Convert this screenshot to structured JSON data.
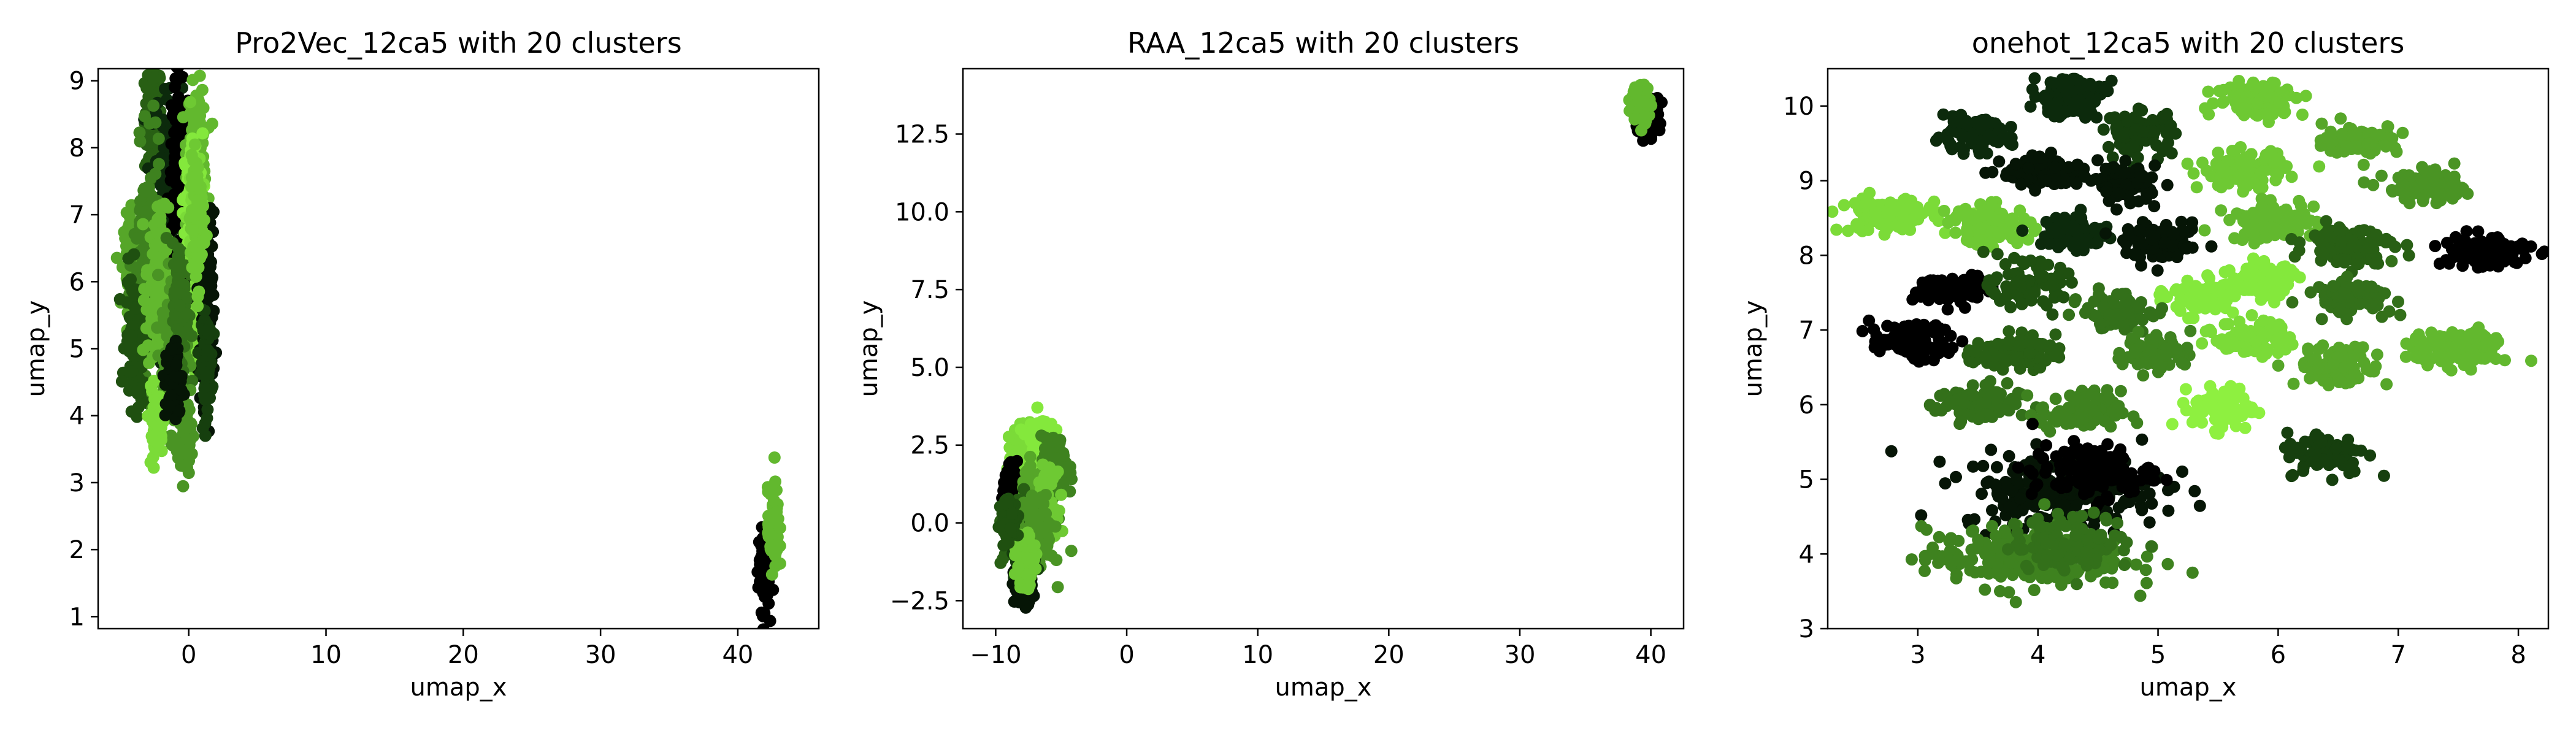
{
  "figure": {
    "colors": [
      "#000000",
      "#061506",
      "#0c2a0c",
      "#163f0e",
      "#1f5010",
      "#285f14",
      "#33701a",
      "#3e821f",
      "#4a9424",
      "#56a629",
      "#62b82e",
      "#6ec933",
      "#7bdb38",
      "#84e83c",
      "#8ef040"
    ]
  },
  "chart_data": [
    {
      "type": "scatter",
      "title": "Pro2Vec_12ca5 with 20 clusters",
      "xlabel": "umap_x",
      "ylabel": "umap_y",
      "xlim": [
        -6.6,
        45.9
      ],
      "ylim": [
        0.82,
        9.18
      ],
      "xticks": [
        0,
        10,
        20,
        30,
        40
      ],
      "yticks": [
        1,
        2,
        3,
        4,
        5,
        6,
        7,
        8,
        9
      ],
      "xtick_labels": [
        "0",
        "10",
        "20",
        "30",
        "40"
      ],
      "ytick_labels": [
        "1",
        "2",
        "3",
        "4",
        "5",
        "6",
        "7",
        "8",
        "9"
      ],
      "grid": false,
      "legend": "none",
      "clusters": [
        {
          "cx": -2.6,
          "cy": 8.4,
          "sx": 0.3,
          "sy": 0.45,
          "n": 120,
          "c": 5
        },
        {
          "cx": -1.5,
          "cy": 7.5,
          "sx": 0.5,
          "sy": 0.8,
          "n": 160,
          "c": 2
        },
        {
          "cx": -0.7,
          "cy": 7.3,
          "sx": 0.4,
          "sy": 0.9,
          "n": 160,
          "c": 0
        },
        {
          "cx": 0.6,
          "cy": 8.0,
          "sx": 0.35,
          "sy": 0.45,
          "n": 120,
          "c": 10
        },
        {
          "cx": 0.3,
          "cy": 7.2,
          "sx": 0.35,
          "sy": 0.5,
          "n": 120,
          "c": 13
        },
        {
          "cx": 0.6,
          "cy": 6.2,
          "sx": 0.3,
          "sy": 0.7,
          "n": 150,
          "c": 12
        },
        {
          "cx": 1.3,
          "cy": 5.6,
          "sx": 0.3,
          "sy": 0.7,
          "n": 140,
          "c": 1
        },
        {
          "cx": 1.3,
          "cy": 4.8,
          "sx": 0.2,
          "sy": 0.35,
          "n": 90,
          "c": 3
        },
        {
          "cx": -4.1,
          "cy": 6.3,
          "sx": 0.3,
          "sy": 0.35,
          "n": 120,
          "c": 9
        },
        {
          "cx": -3.0,
          "cy": 6.3,
          "sx": 0.5,
          "sy": 0.8,
          "n": 160,
          "c": 7
        },
        {
          "cx": -3.8,
          "cy": 5.1,
          "sx": 0.4,
          "sy": 0.5,
          "n": 130,
          "c": 4
        },
        {
          "cx": -2.3,
          "cy": 5.9,
          "sx": 0.4,
          "sy": 0.6,
          "n": 140,
          "c": 10
        },
        {
          "cx": -1.0,
          "cy": 5.0,
          "sx": 0.5,
          "sy": 0.6,
          "n": 150,
          "c": 8
        },
        {
          "cx": -0.6,
          "cy": 5.6,
          "sx": 0.3,
          "sy": 0.5,
          "n": 110,
          "c": 6
        },
        {
          "cx": -2.4,
          "cy": 3.9,
          "sx": 0.25,
          "sy": 0.25,
          "n": 80,
          "c": 12
        },
        {
          "cx": -0.2,
          "cy": 3.7,
          "sx": 0.2,
          "sy": 0.25,
          "n": 70,
          "c": 8
        },
        {
          "cx": -1.1,
          "cy": 4.5,
          "sx": 0.3,
          "sy": 0.3,
          "n": 70,
          "c": 1
        },
        {
          "cx": 0.6,
          "cy": 6.9,
          "sx": 0.25,
          "sy": 0.5,
          "n": 90,
          "c": 11
        },
        {
          "cx": 41.9,
          "cy": 1.7,
          "sx": 0.2,
          "sy": 0.3,
          "n": 90,
          "c": 0
        },
        {
          "cx": 42.6,
          "cy": 2.3,
          "sx": 0.2,
          "sy": 0.3,
          "n": 90,
          "c": 10
        }
      ]
    },
    {
      "type": "scatter",
      "title": "RAA_12ca5 with 20 clusters",
      "xlabel": "umap_x",
      "ylabel": "umap_y",
      "xlim": [
        -12.5,
        42.5
      ],
      "ylim": [
        -3.4,
        14.6
      ],
      "xticks": [
        -10,
        0,
        10,
        20,
        30,
        40
      ],
      "yticks": [
        -2.5,
        0.0,
        2.5,
        5.0,
        7.5,
        10.0,
        12.5
      ],
      "xtick_labels": [
        "−10",
        "0",
        "10",
        "20",
        "30",
        "40"
      ],
      "ytick_labels": [
        "−2.5",
        "0.0",
        "2.5",
        "5.0",
        "7.5",
        "10.0",
        "12.5"
      ],
      "grid": false,
      "legend": "none",
      "clusters": [
        {
          "cx": -7.8,
          "cy": 2.0,
          "sx": 0.6,
          "sy": 0.55,
          "n": 150,
          "c": 12
        },
        {
          "cx": -6.6,
          "cy": 2.6,
          "sx": 0.5,
          "sy": 0.45,
          "n": 120,
          "c": 13
        },
        {
          "cx": -5.5,
          "cy": 1.7,
          "sx": 0.5,
          "sy": 0.5,
          "n": 120,
          "c": 7
        },
        {
          "cx": -8.7,
          "cy": 0.9,
          "sx": 0.4,
          "sy": 0.4,
          "n": 110,
          "c": 0
        },
        {
          "cx": -7.2,
          "cy": 0.8,
          "sx": 0.4,
          "sy": 0.4,
          "n": 110,
          "c": 9
        },
        {
          "cx": -6.2,
          "cy": 0.6,
          "sx": 0.4,
          "sy": 0.5,
          "n": 110,
          "c": 11
        },
        {
          "cx": -8.3,
          "cy": -0.3,
          "sx": 0.55,
          "sy": 0.5,
          "n": 140,
          "c": 5
        },
        {
          "cx": -6.8,
          "cy": -0.4,
          "sx": 0.6,
          "sy": 0.55,
          "n": 140,
          "c": 8
        },
        {
          "cx": -7.8,
          "cy": -1.4,
          "sx": 0.4,
          "sy": 0.35,
          "n": 100,
          "c": 3
        },
        {
          "cx": -7.9,
          "cy": -2.0,
          "sx": 0.35,
          "sy": 0.3,
          "n": 90,
          "c": 1
        },
        {
          "cx": -7.8,
          "cy": -1.2,
          "sx": 0.35,
          "sy": 0.4,
          "n": 100,
          "c": 11
        },
        {
          "cx": -9.0,
          "cy": 0.1,
          "sx": 0.3,
          "sy": 0.35,
          "n": 80,
          "c": 4
        },
        {
          "cx": 39.7,
          "cy": 13.1,
          "sx": 0.45,
          "sy": 0.3,
          "n": 120,
          "c": 0
        },
        {
          "cx": 39.2,
          "cy": 13.5,
          "sx": 0.35,
          "sy": 0.3,
          "n": 120,
          "c": 10
        }
      ]
    },
    {
      "type": "scatter",
      "title": "onehot_12ca5 with 20 clusters",
      "xlabel": "umap_x",
      "ylabel": "umap_y",
      "xlim": [
        2.25,
        8.25
      ],
      "ylim": [
        3.0,
        10.5
      ],
      "xticks": [
        3,
        4,
        5,
        6,
        7,
        8
      ],
      "yticks": [
        3,
        4,
        5,
        6,
        7,
        8,
        9,
        10
      ],
      "xtick_labels": [
        "3",
        "4",
        "5",
        "6",
        "7",
        "8"
      ],
      "ytick_labels": [
        "3",
        "4",
        "5",
        "6",
        "7",
        "8",
        "9",
        "10"
      ],
      "grid": false,
      "legend": "none",
      "clusters": [
        {
          "cx": 4.25,
          "cy": 10.15,
          "sx": 0.15,
          "sy": 0.14,
          "n": 110,
          "c": 2
        },
        {
          "cx": 3.45,
          "cy": 9.6,
          "sx": 0.16,
          "sy": 0.1,
          "n": 100,
          "c": 2
        },
        {
          "cx": 4.85,
          "cy": 9.65,
          "sx": 0.14,
          "sy": 0.14,
          "n": 90,
          "c": 3
        },
        {
          "cx": 5.85,
          "cy": 10.1,
          "sx": 0.18,
          "sy": 0.12,
          "n": 110,
          "c": 11
        },
        {
          "cx": 6.7,
          "cy": 9.55,
          "sx": 0.16,
          "sy": 0.1,
          "n": 90,
          "c": 9
        },
        {
          "cx": 4.05,
          "cy": 9.1,
          "sx": 0.18,
          "sy": 0.1,
          "n": 100,
          "c": 1
        },
        {
          "cx": 4.75,
          "cy": 8.95,
          "sx": 0.12,
          "sy": 0.12,
          "n": 80,
          "c": 1
        },
        {
          "cx": 5.7,
          "cy": 9.15,
          "sx": 0.18,
          "sy": 0.12,
          "n": 100,
          "c": 11
        },
        {
          "cx": 7.25,
          "cy": 8.9,
          "sx": 0.18,
          "sy": 0.1,
          "n": 100,
          "c": 8
        },
        {
          "cx": 2.75,
          "cy": 8.55,
          "sx": 0.2,
          "sy": 0.12,
          "n": 110,
          "c": 12
        },
        {
          "cx": 3.6,
          "cy": 8.4,
          "sx": 0.17,
          "sy": 0.13,
          "n": 100,
          "c": 11
        },
        {
          "cx": 4.3,
          "cy": 8.3,
          "sx": 0.14,
          "sy": 0.12,
          "n": 90,
          "c": 2
        },
        {
          "cx": 5.05,
          "cy": 8.15,
          "sx": 0.16,
          "sy": 0.12,
          "n": 90,
          "c": 1
        },
        {
          "cx": 5.95,
          "cy": 8.45,
          "sx": 0.18,
          "sy": 0.12,
          "n": 100,
          "c": 10
        },
        {
          "cx": 6.6,
          "cy": 8.15,
          "sx": 0.18,
          "sy": 0.13,
          "n": 100,
          "c": 5
        },
        {
          "cx": 7.7,
          "cy": 8.05,
          "sx": 0.2,
          "sy": 0.12,
          "n": 110,
          "c": 0
        },
        {
          "cx": 3.3,
          "cy": 7.55,
          "sx": 0.15,
          "sy": 0.1,
          "n": 80,
          "c": 0
        },
        {
          "cx": 3.9,
          "cy": 7.6,
          "sx": 0.15,
          "sy": 0.14,
          "n": 90,
          "c": 4
        },
        {
          "cx": 5.35,
          "cy": 7.45,
          "sx": 0.14,
          "sy": 0.12,
          "n": 90,
          "c": 13
        },
        {
          "cx": 5.85,
          "cy": 7.65,
          "sx": 0.14,
          "sy": 0.12,
          "n": 90,
          "c": 13
        },
        {
          "cx": 6.6,
          "cy": 7.45,
          "sx": 0.18,
          "sy": 0.11,
          "n": 90,
          "c": 6
        },
        {
          "cx": 4.65,
          "cy": 7.25,
          "sx": 0.14,
          "sy": 0.12,
          "n": 80,
          "c": 6
        },
        {
          "cx": 2.95,
          "cy": 6.85,
          "sx": 0.17,
          "sy": 0.12,
          "n": 100,
          "c": 0
        },
        {
          "cx": 3.8,
          "cy": 6.7,
          "sx": 0.17,
          "sy": 0.11,
          "n": 90,
          "c": 5
        },
        {
          "cx": 5.0,
          "cy": 6.7,
          "sx": 0.14,
          "sy": 0.12,
          "n": 80,
          "c": 7
        },
        {
          "cx": 5.8,
          "cy": 6.9,
          "sx": 0.16,
          "sy": 0.12,
          "n": 90,
          "c": 12
        },
        {
          "cx": 6.5,
          "cy": 6.5,
          "sx": 0.17,
          "sy": 0.13,
          "n": 100,
          "c": 9
        },
        {
          "cx": 7.5,
          "cy": 6.75,
          "sx": 0.2,
          "sy": 0.12,
          "n": 110,
          "c": 10
        },
        {
          "cx": 3.5,
          "cy": 6.0,
          "sx": 0.17,
          "sy": 0.13,
          "n": 100,
          "c": 6
        },
        {
          "cx": 4.35,
          "cy": 5.9,
          "sx": 0.17,
          "sy": 0.14,
          "n": 100,
          "c": 7
        },
        {
          "cx": 5.55,
          "cy": 5.95,
          "sx": 0.13,
          "sy": 0.14,
          "n": 90,
          "c": 14
        },
        {
          "cx": 6.4,
          "cy": 5.35,
          "sx": 0.17,
          "sy": 0.14,
          "n": 100,
          "c": 3
        },
        {
          "cx": 4.2,
          "cy": 4.85,
          "sx": 0.42,
          "sy": 0.25,
          "n": 220,
          "c": 1
        },
        {
          "cx": 4.45,
          "cy": 5.1,
          "sx": 0.25,
          "sy": 0.18,
          "n": 120,
          "c": 0
        },
        {
          "cx": 3.9,
          "cy": 3.95,
          "sx": 0.42,
          "sy": 0.2,
          "n": 260,
          "c": 7
        },
        {
          "cx": 4.3,
          "cy": 4.15,
          "sx": 0.25,
          "sy": 0.18,
          "n": 120,
          "c": 6
        }
      ]
    }
  ]
}
